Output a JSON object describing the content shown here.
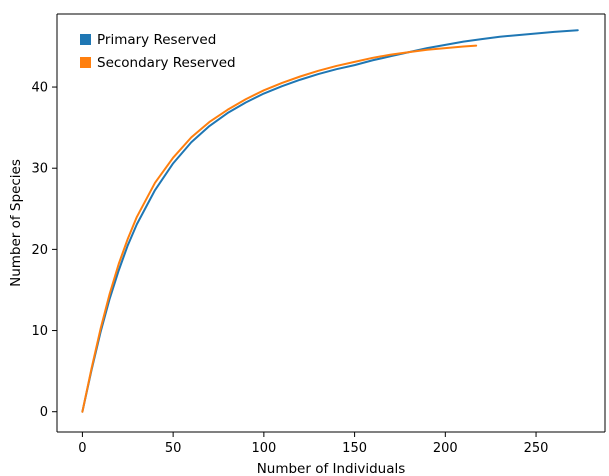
{
  "chart_data": {
    "type": "line",
    "xlabel": "Number of Individuals",
    "ylabel": "Number of Species",
    "xlim": [
      -14,
      288
    ],
    "ylim": [
      -2.5,
      49
    ],
    "xticks": [
      0,
      50,
      100,
      150,
      200,
      250
    ],
    "yticks": [
      0,
      10,
      20,
      30,
      40
    ],
    "grid": false,
    "legend_position": "top-left",
    "series": [
      {
        "name": "Primary Reserved",
        "color": "#1f77b4",
        "x": [
          0,
          5,
          10,
          15,
          20,
          25,
          30,
          40,
          50,
          60,
          70,
          80,
          90,
          100,
          110,
          120,
          130,
          140,
          150,
          160,
          170,
          180,
          190,
          200,
          210,
          220,
          230,
          240,
          250,
          260,
          273
        ],
        "y": [
          0,
          5.1,
          9.8,
          13.9,
          17.4,
          20.5,
          23.1,
          27.3,
          30.6,
          33.2,
          35.2,
          36.8,
          38.1,
          39.2,
          40.1,
          40.9,
          41.6,
          42.2,
          42.7,
          43.3,
          43.8,
          44.3,
          44.8,
          45.2,
          45.6,
          45.9,
          46.2,
          46.4,
          46.6,
          46.8,
          47.0
        ]
      },
      {
        "name": "Secondary Reserved",
        "color": "#ff7f0e",
        "x": [
          0,
          5,
          10,
          15,
          20,
          25,
          30,
          40,
          50,
          60,
          70,
          80,
          90,
          100,
          110,
          120,
          130,
          140,
          150,
          160,
          170,
          180,
          190,
          200,
          210,
          217
        ],
        "y": [
          0,
          5.3,
          10.2,
          14.5,
          18.2,
          21.3,
          24.0,
          28.2,
          31.3,
          33.8,
          35.7,
          37.2,
          38.5,
          39.6,
          40.5,
          41.3,
          42.0,
          42.6,
          43.1,
          43.6,
          44.0,
          44.3,
          44.6,
          44.8,
          45.0,
          45.1
        ]
      }
    ]
  }
}
